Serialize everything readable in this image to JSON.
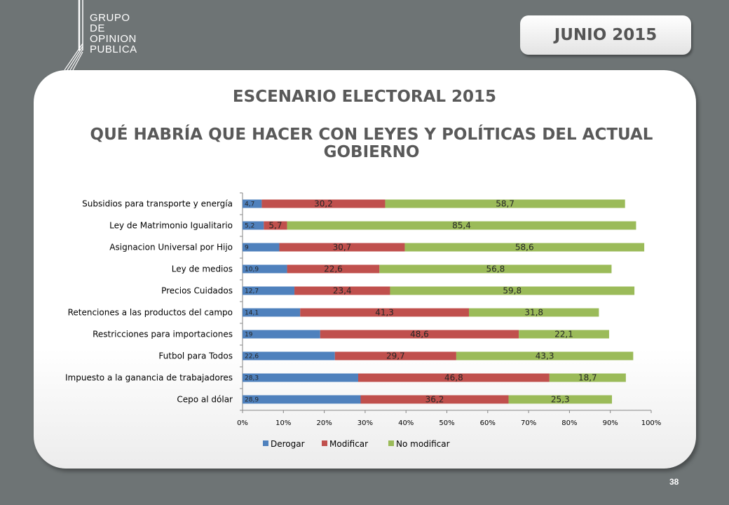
{
  "header": {
    "logo_lines": [
      "GRUPO",
      "DE",
      "OPINION",
      "PUBLICA"
    ],
    "date": "JUNIO 2015"
  },
  "slide": {
    "title": "ESCENARIO ELECTORAL 2015",
    "subtitle": "QUÉ HABRÍA QUE HACER CON LEYES Y POLÍTICAS DEL ACTUAL GOBIERNO",
    "page_number": "38"
  },
  "colors": {
    "derogar": "#4f81bd",
    "modificar": "#c0504d",
    "no_modificar": "#9bbb59",
    "background": "#6e7475"
  },
  "chart_data": {
    "type": "bar",
    "orientation": "horizontal",
    "stacked": "percent",
    "categories": [
      "Subsidios para transporte y  energía",
      "Ley de Matrimonio Igualitario",
      "Asignacion Universal por Hijo",
      "Ley de medios",
      "Precios Cuidados",
      "Retenciones a las productos del campo",
      "Restricciones para importaciones",
      "Futbol para Todos",
      "Impuesto a la ganancia de trabajadores",
      "Cepo al dólar"
    ],
    "series": [
      {
        "name": "Derogar",
        "values": [
          4.7,
          5.2,
          9,
          10.9,
          12.7,
          14.1,
          19,
          22.6,
          28.3,
          28.9
        ],
        "labels": [
          "4,7",
          "5,2",
          "9",
          "10,9",
          "12,7",
          "14,1",
          "19",
          "22,6",
          "28,3",
          "28,9"
        ]
      },
      {
        "name": "Modificar",
        "values": [
          30.2,
          5.7,
          30.7,
          22.6,
          23.4,
          41.3,
          48.6,
          29.7,
          46.8,
          36.2
        ],
        "labels": [
          "30,2",
          "5,7",
          "30,7",
          "22,6",
          "23,4",
          "41,3",
          "48,6",
          "29,7",
          "46,8",
          "36,2"
        ]
      },
      {
        "name": "No modificar",
        "values": [
          58.7,
          85.4,
          58.6,
          56.8,
          59.8,
          31.8,
          22.1,
          43.3,
          18.7,
          25.3
        ],
        "labels": [
          "58,7",
          "85,4",
          "58,6",
          "56,8",
          "59,8",
          "31,8",
          "22,1",
          "43,3",
          "18,7",
          "25,3"
        ]
      }
    ],
    "xticks": [
      "0%",
      "10%",
      "20%",
      "30%",
      "40%",
      "50%",
      "60%",
      "70%",
      "80%",
      "90%",
      "100%"
    ],
    "xlim": [
      0,
      100
    ],
    "grid": false,
    "legend": "bottom"
  }
}
